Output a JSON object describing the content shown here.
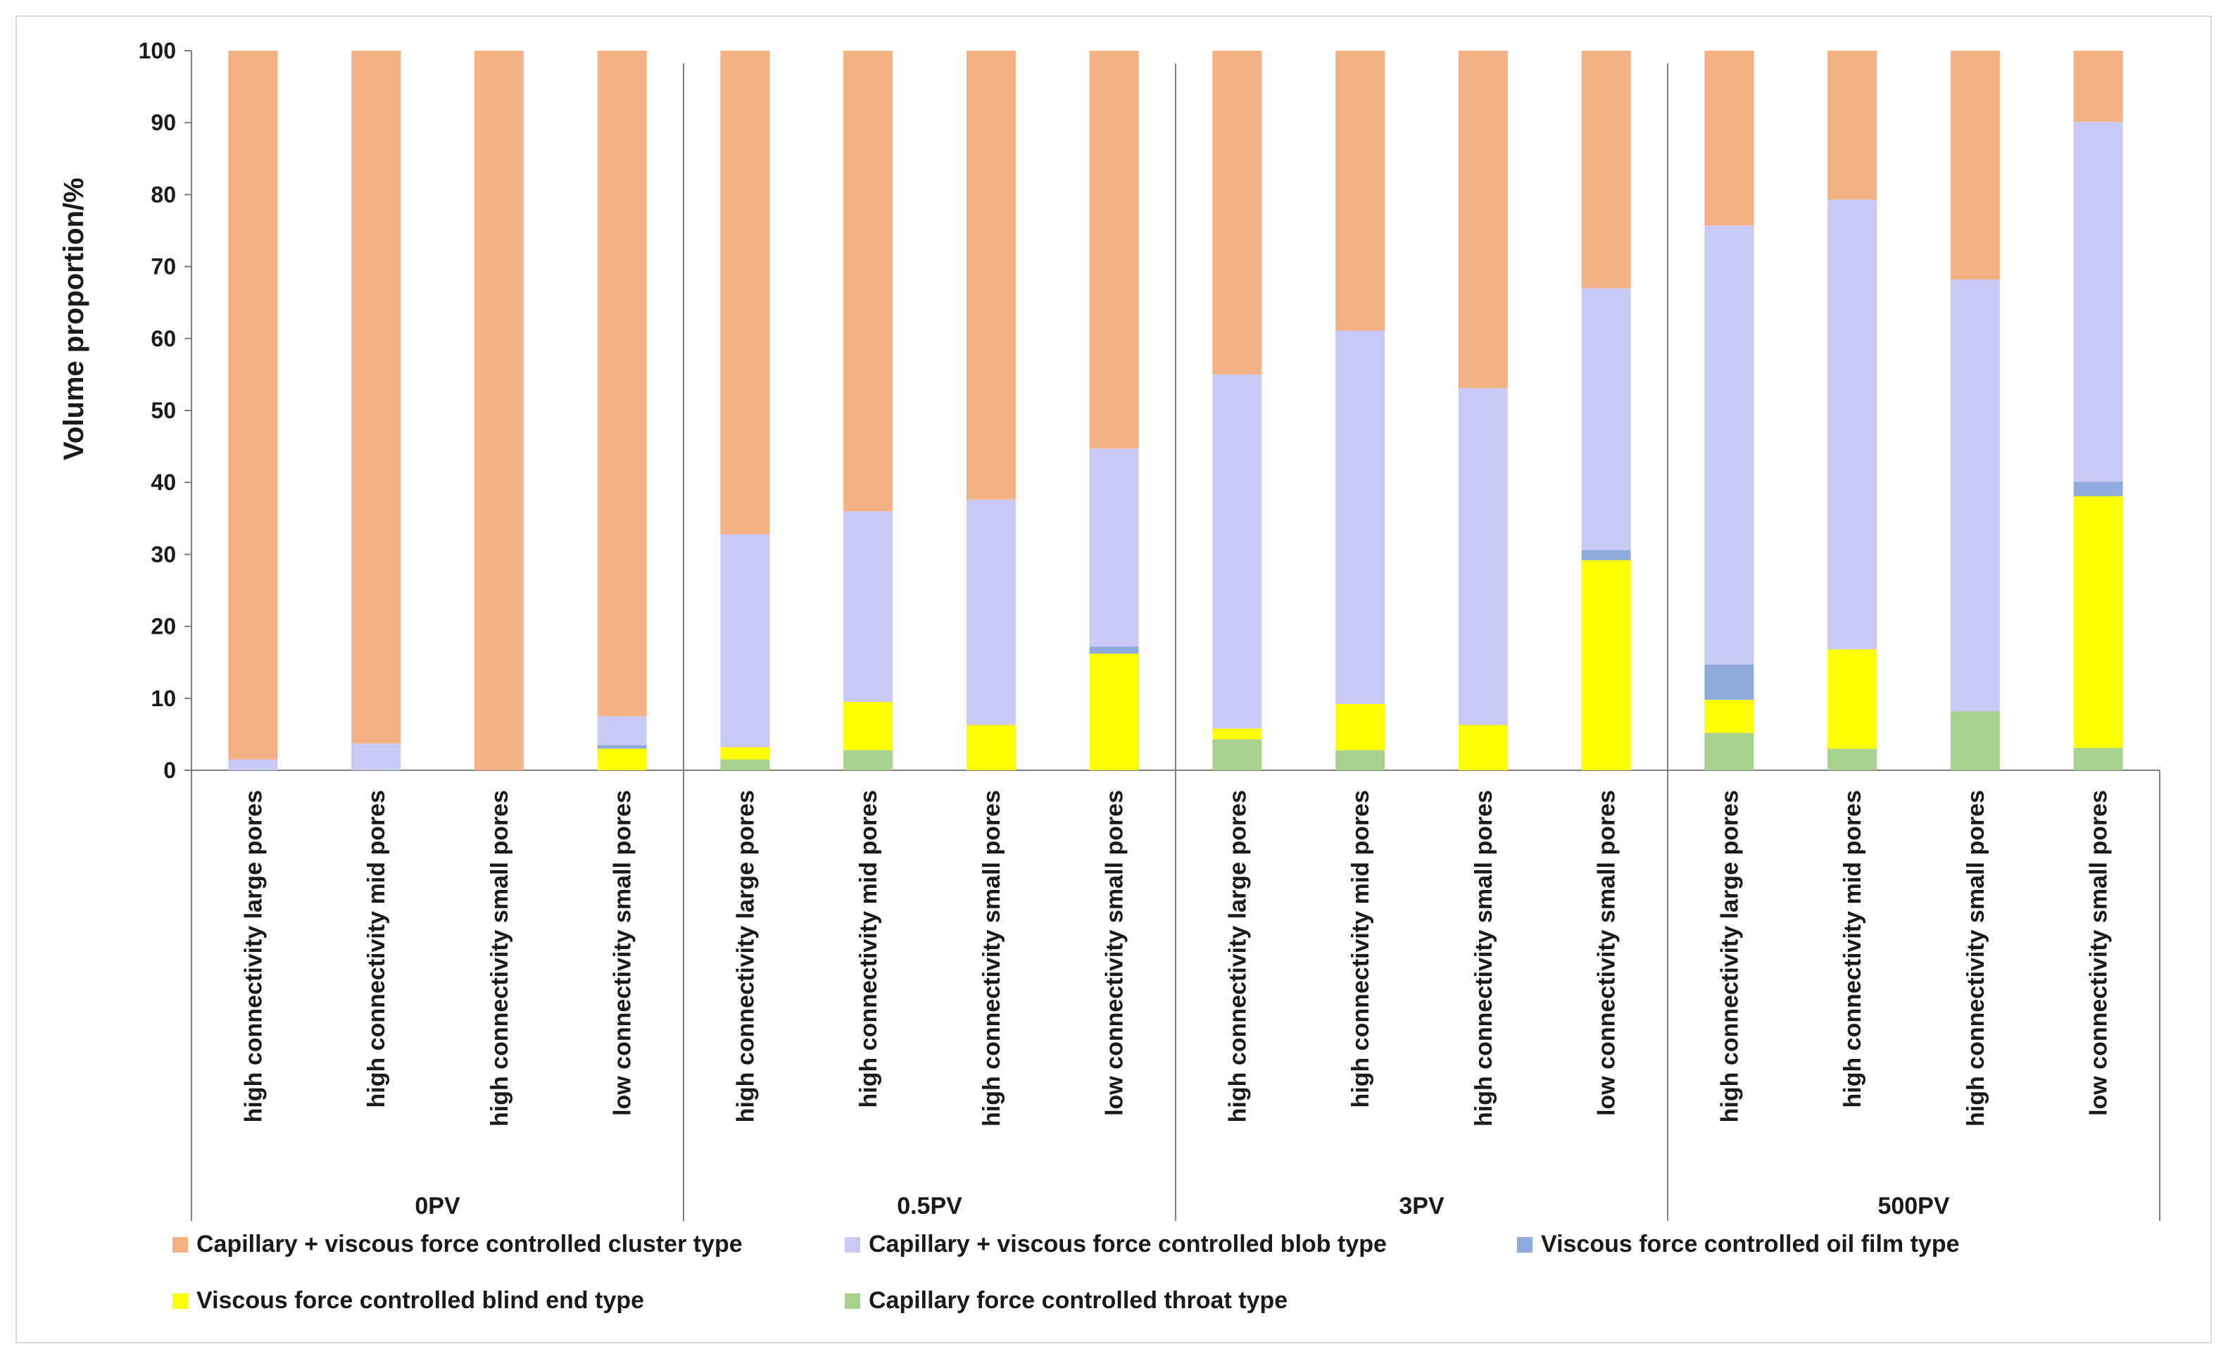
{
  "chart_data": {
    "type": "bar",
    "stacked": true,
    "title": "",
    "xlabel": "",
    "ylabel": "Volume proportion/%",
    "ylim": [
      0,
      100
    ],
    "yticks": [
      0,
      10,
      20,
      30,
      40,
      50,
      60,
      70,
      80,
      90,
      100
    ],
    "grid": false,
    "legend_position": "bottom",
    "groups": [
      {
        "label": "0PV",
        "categories": [
          "high connectivity large pores",
          "high connectivity mid pores",
          "high connectivity small pores",
          "low connectivity small pores"
        ]
      },
      {
        "label": "0.5PV",
        "categories": [
          "high connectivity large pores",
          "high connectivity mid pores",
          "high connectivity small pores",
          "low connectivity small pores"
        ]
      },
      {
        "label": "3PV",
        "categories": [
          "high connectivity large pores",
          "high connectivity mid pores",
          "high connectivity small pores",
          "low connectivity small pores"
        ]
      },
      {
        "label": "500PV",
        "categories": [
          "high connectivity large pores",
          "high connectivity mid pores",
          "high connectivity small pores",
          "low connectivity small pores"
        ]
      }
    ],
    "series": [
      {
        "name": "Capillary force controlled throat type",
        "color": "#a9d18e",
        "values": [
          0,
          0,
          0,
          0,
          1.5,
          2.8,
          0,
          0,
          4.3,
          2.8,
          0,
          0,
          5.2,
          3.0,
          8.2,
          3.1
        ]
      },
      {
        "name": "Viscous force controlled blind end type",
        "color": "#ffff00",
        "values": [
          0,
          0,
          0,
          3.0,
          1.7,
          6.7,
          6.3,
          16.2,
          1.5,
          6.4,
          6.3,
          29.2,
          4.6,
          13.8,
          0,
          35.0
        ]
      },
      {
        "name": "Viscous force controlled oil film type",
        "color": "#8faadc",
        "values": [
          0,
          0,
          0,
          0.5,
          0,
          0,
          0,
          1.0,
          0,
          0,
          0,
          1.4,
          4.9,
          0,
          0,
          2.0
        ]
      },
      {
        "name": "Capillary + viscous force controlled blob type",
        "color": "#c9c9f5",
        "values": [
          1.5,
          3.7,
          0,
          4.0,
          29.6,
          26.5,
          31.3,
          27.5,
          49.2,
          51.9,
          46.8,
          36.4,
          61.0,
          62.5,
          60.0,
          50.0
        ]
      },
      {
        "name": "Capillary + viscous force controlled cluster type",
        "color": "#f4b183",
        "values": [
          98.5,
          96.3,
          100,
          92.5,
          67.2,
          64.0,
          62.4,
          55.3,
          45.0,
          38.9,
          46.9,
          33.0,
          24.3,
          20.7,
          31.8,
          9.9
        ]
      }
    ],
    "legend": [
      {
        "name": "Capillary + viscous force controlled cluster type",
        "color": "#f4b183"
      },
      {
        "name": "Capillary + viscous force controlled blob type",
        "color": "#c9c9f5"
      },
      {
        "name": "Viscous force controlled oil film type",
        "color": "#8faadc"
      },
      {
        "name": "Viscous force controlled blind end type",
        "color": "#ffff00"
      },
      {
        "name": "Capillary force controlled throat type",
        "color": "#a9d18e"
      }
    ]
  }
}
